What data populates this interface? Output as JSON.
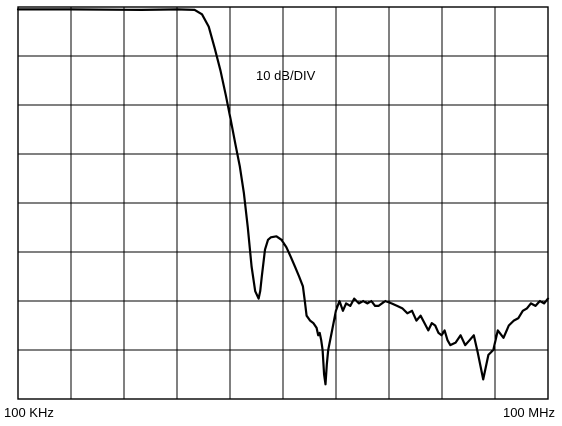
{
  "chart_data": {
    "type": "line",
    "title": "",
    "annotation": "10 dB/DIV",
    "x_start_label": "100 KHz",
    "x_end_label": "100 MHz",
    "x_scale": "log",
    "x_range": [
      0.1,
      100
    ],
    "x_unit": "MHz",
    "y_unit": "dB",
    "y_range": [
      -80,
      0
    ],
    "y_divisions": 8,
    "x_divisions": 10,
    "grid": true,
    "colors": {
      "trace": "#000000",
      "grid": "#000000",
      "background": "#ffffff"
    },
    "series": [
      {
        "name": "",
        "x": [
          0.1,
          0.2,
          0.5,
          0.8,
          1.0,
          1.1,
          1.2,
          1.3,
          1.4,
          1.5,
          1.6,
          1.7,
          1.8,
          1.9,
          2.0,
          2.1,
          2.2,
          2.3,
          2.35,
          2.4,
          2.5,
          2.6,
          2.7,
          2.9,
          3.1,
          3.3,
          3.5,
          3.7,
          3.9,
          4.1,
          4.2,
          4.3,
          4.5,
          4.7,
          4.9,
          5.0,
          5.1,
          5.2,
          5.3,
          5.4,
          5.5,
          5.6,
          5.7,
          6.0,
          6.3,
          6.6,
          6.9,
          7.2,
          7.6,
          8.0,
          8.5,
          9.0,
          9.5,
          10.0,
          10.5,
          11.0,
          12.0,
          13.0,
          14.0,
          15.0,
          16.0,
          17.0,
          18.0,
          19.0,
          20.0,
          21.0,
          22.0,
          23.0,
          24.0,
          25.0,
          26.0,
          27.0,
          28.0,
          30.0,
          32.0,
          34.0,
          36.0,
          38.0,
          40.0,
          43.0,
          46.0,
          49.0,
          52.0,
          56.0,
          60.0,
          64.0,
          68.0,
          72.0,
          76.0,
          80.0,
          85.0,
          90.0,
          95.0,
          100.0
        ],
        "y": [
          -0.5,
          -0.5,
          -0.6,
          -0.5,
          -0.6,
          -1.5,
          -4,
          -8.5,
          -13,
          -18,
          -23,
          -28,
          -32.5,
          -38,
          -45,
          -53,
          -58,
          -59.5,
          -58,
          -55,
          -49.5,
          -47.5,
          -47,
          -46.8,
          -47.5,
          -49,
          -51,
          -53,
          -55,
          -57,
          -60,
          -63,
          -64,
          -64.5,
          -65.5,
          -67,
          -66.5,
          -68,
          -70,
          -75,
          -77,
          -73,
          -70,
          -66,
          -62,
          -60,
          -62,
          -60.5,
          -61,
          -59.5,
          -60.5,
          -60,
          -60.5,
          -60,
          -61,
          -61,
          -60,
          -60.5,
          -61,
          -61.5,
          -62.5,
          -62,
          -64,
          -63,
          -64.5,
          -66,
          -64.5,
          -65,
          -66.5,
          -67,
          -66,
          -68,
          -69,
          -68.5,
          -67,
          -69,
          -68,
          -67,
          -70.5,
          -76,
          -71,
          -70,
          -66,
          -67.5,
          -65,
          -64,
          -63.5,
          -62,
          -61.5,
          -60.5,
          -61,
          -60,
          -60.5,
          -59.5
        ]
      }
    ]
  }
}
